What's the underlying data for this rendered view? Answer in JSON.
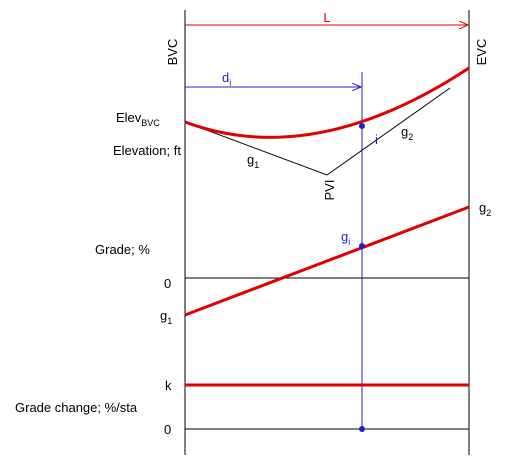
{
  "labels": {
    "L": "L",
    "BVC": "BVC",
    "EVC": "EVC",
    "d_i": {
      "base": "d",
      "sub": "i"
    },
    "elev_bvc": {
      "base": "Elev",
      "sub": "BVC"
    },
    "elevation": "Elevation; ft",
    "curve_g1": {
      "base": "g",
      "sub": "1"
    },
    "curve_g2": {
      "base": "g",
      "sub": "2"
    },
    "PVI": "PVI",
    "i": "i",
    "grade_g2": {
      "base": "g",
      "sub": "2"
    },
    "g_i": {
      "base": "g",
      "sub": "i"
    },
    "grade": "Grade; %",
    "grade_zero": "0",
    "grade_g1": {
      "base": "g",
      "sub": "1"
    },
    "k": "k",
    "grade_change": "Grade change; %/sta",
    "change_zero": "0"
  }
}
